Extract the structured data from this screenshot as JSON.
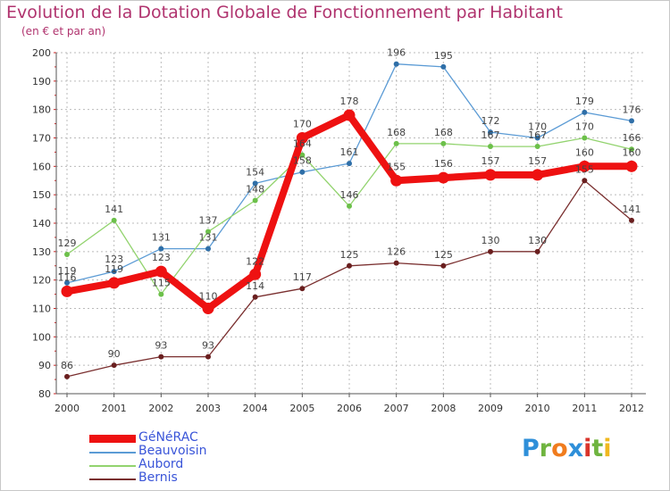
{
  "title": "Evolution de la Dotation Globale de Fonctionnement par Habitant",
  "subtitle": "(en € et par an)",
  "brand": {
    "text": "Proxiti",
    "letters": [
      "P",
      "r",
      "o",
      "x",
      "i",
      "t",
      "i"
    ],
    "letter_colors": [
      "#2e8fd9",
      "#6fb43f",
      "#f07c1e",
      "#2e8fd9",
      "#d9342b",
      "#6fb43f",
      "#f0b81e"
    ]
  },
  "colors": {
    "title": "#b0336e",
    "legend_text": "#3a55d8",
    "axis": "#555555",
    "grid": "#bbbbbb",
    "tick_marks": "#cc2222"
  },
  "chart_data": {
    "type": "line",
    "title": "Evolution de la Dotation Globale de Fonctionnement par Habitant",
    "subtitle": "(en € et par an)",
    "x": [
      "2000",
      "2001",
      "2002",
      "2003",
      "2004",
      "2005",
      "2006",
      "2007",
      "2008",
      "2009",
      "2010",
      "2011",
      "2012"
    ],
    "ylim": [
      80,
      200
    ],
    "yticks": [
      80,
      90,
      100,
      110,
      120,
      130,
      140,
      150,
      160,
      170,
      180,
      190,
      200
    ],
    "grid": true,
    "legend_position": "bottom-left",
    "series": [
      {
        "name": "GéNéRAC",
        "color": "#ee1111",
        "emphasis": true,
        "values": [
          116,
          119,
          123,
          110,
          122,
          170,
          178,
          155,
          156,
          157,
          157,
          160,
          160
        ]
      },
      {
        "name": "Beauvoisin",
        "color": "#5b9bd5",
        "marker_color": "#2f6fa8",
        "values": [
          119,
          123,
          131,
          131,
          154,
          158,
          161,
          196,
          195,
          172,
          170,
          179,
          176
        ]
      },
      {
        "name": "Aubord",
        "color": "#92d36e",
        "marker_color": "#6cc04a",
        "values": [
          129,
          141,
          115,
          137,
          148,
          164,
          146,
          168,
          168,
          167,
          167,
          170,
          166
        ]
      },
      {
        "name": "Bernis",
        "color": "#7a2f2f",
        "marker_color": "#6a1f1f",
        "values": [
          86,
          90,
          93,
          93,
          114,
          117,
          125,
          126,
          125,
          130,
          130,
          155,
          141
        ]
      }
    ]
  }
}
